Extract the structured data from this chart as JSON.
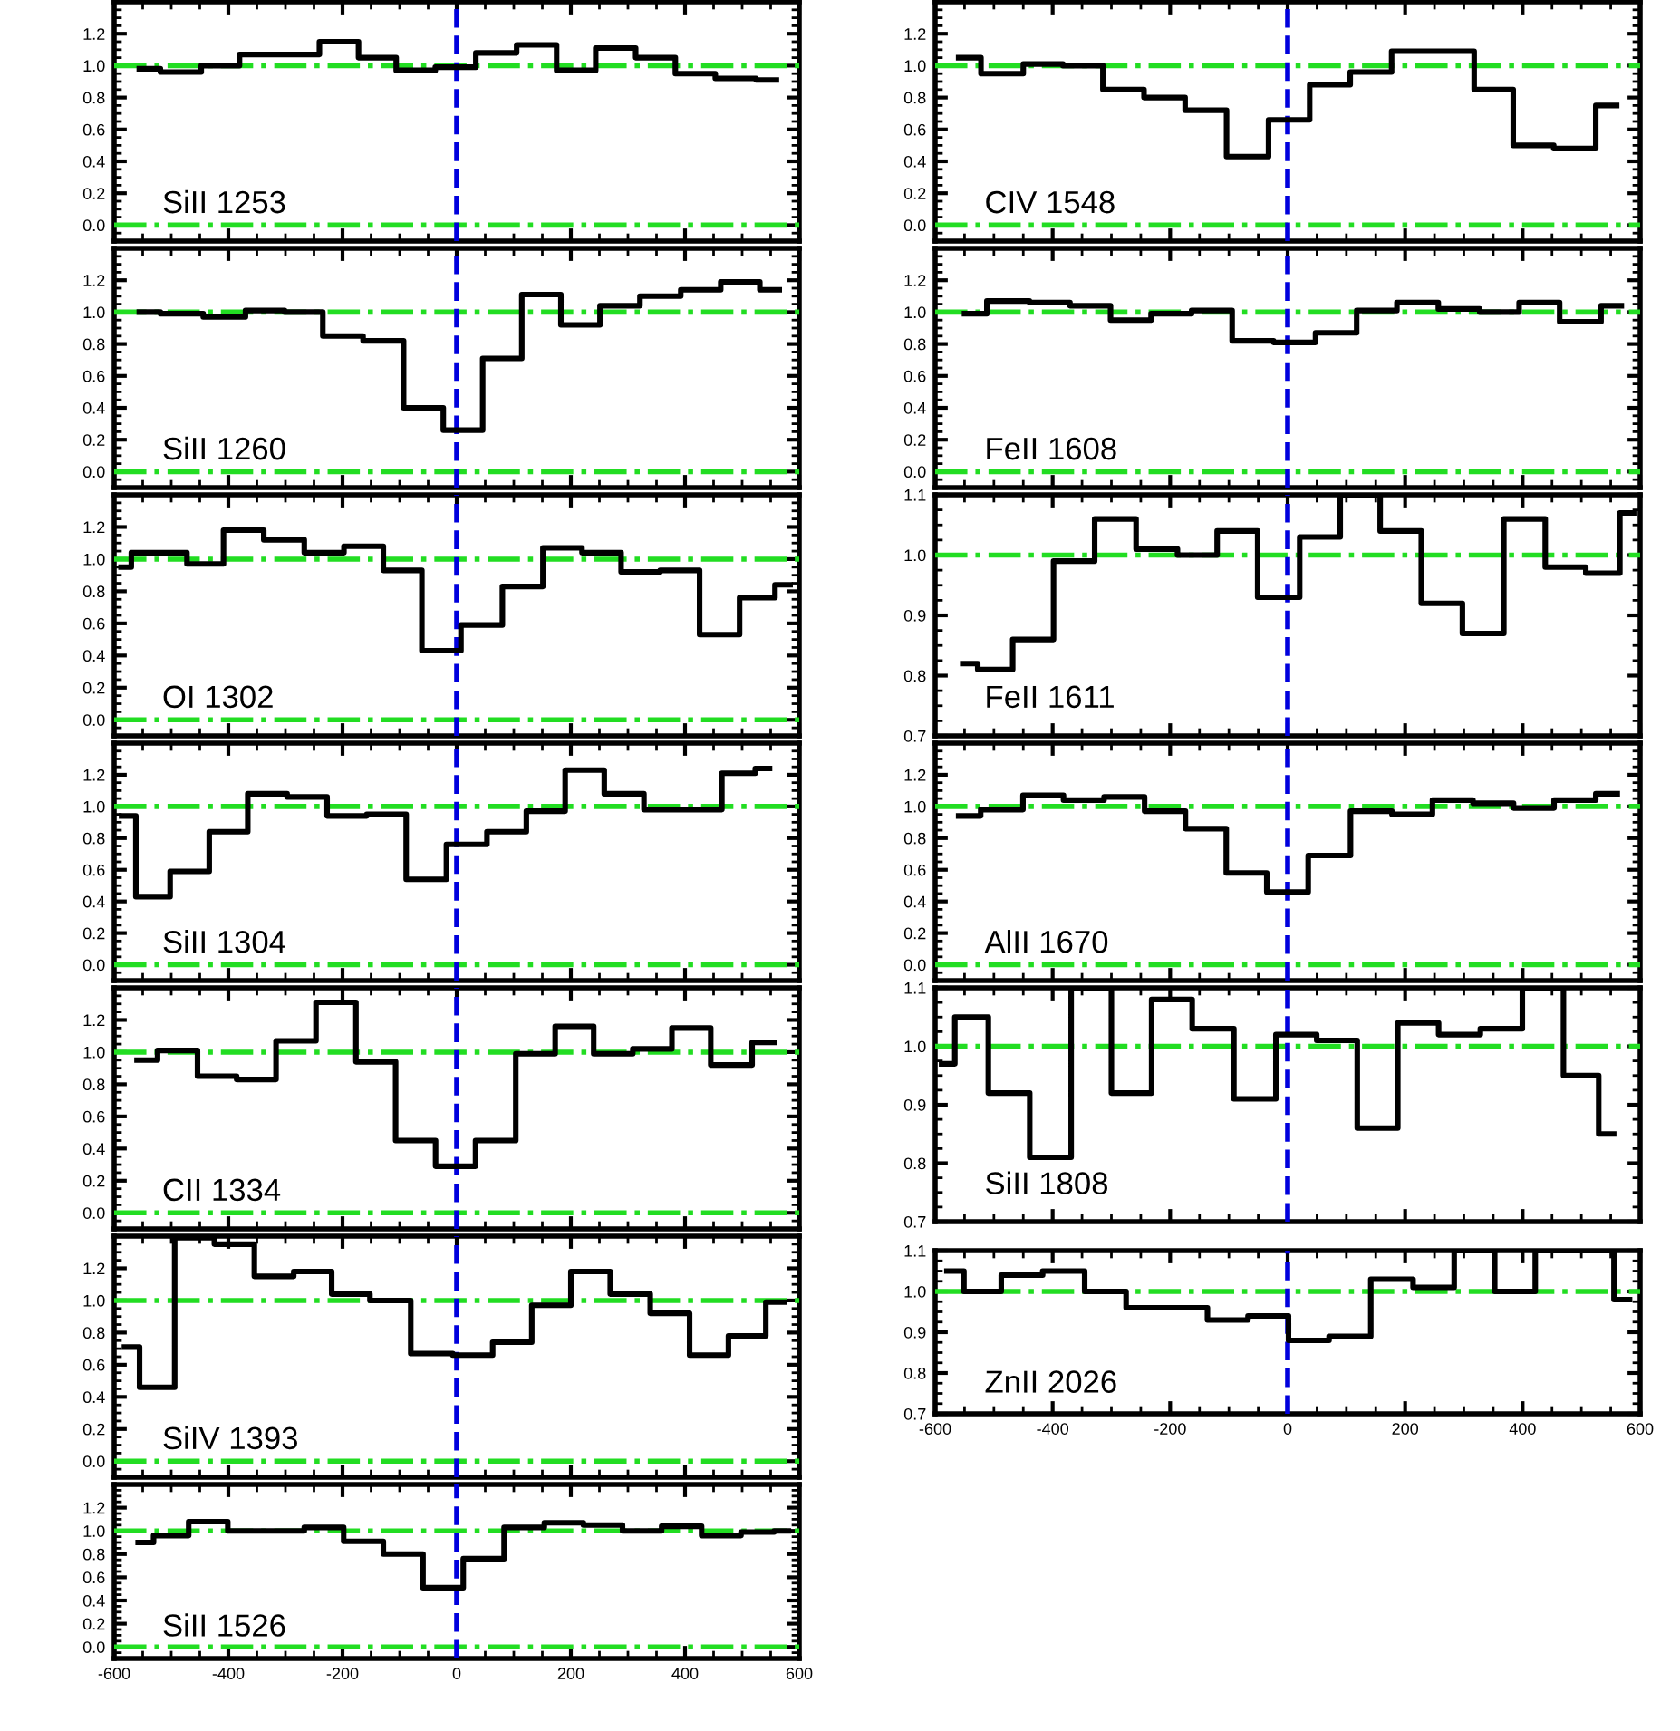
{
  "chart_data": [
    {
      "type": "step",
      "annotations": [
        "SiII 1253"
      ],
      "x": [
        -556,
        -482,
        -413,
        -348,
        -276,
        -205,
        -139,
        -73,
        -2,
        69,
        141,
        209,
        278,
        349,
        417,
        489,
        560
      ],
      "series": [
        {
          "color": "#000000",
          "values": [
            0.98,
            0.96,
            1.0,
            1.07,
            1.07,
            1.15,
            1.05,
            0.97,
            0.99,
            1.08,
            1.13,
            0.97,
            1.11,
            1.05,
            0.95,
            0.92,
            0.91
          ]
        }
      ],
      "xlim": [
        -600,
        600
      ],
      "ylim": [
        -0.1,
        1.4
      ],
      "xticks": [
        -600,
        -400,
        -200,
        0,
        200,
        400,
        600
      ],
      "yticks": [
        {
          "value": 0,
          "label": "0.0"
        },
        {
          "value": 0.2,
          "label": "0.2"
        },
        {
          "value": 0.4,
          "label": "0.4"
        },
        {
          "value": 0.6,
          "label": "0.6"
        },
        {
          "value": 0.8,
          "label": "0.8"
        },
        {
          "value": 1,
          "label": "1.0"
        },
        {
          "value": 1.2,
          "label": "1.2"
        }
      ],
      "tick_labels": "y",
      "ref_lines": [
        {
          "axis": "y",
          "value": 1.0,
          "color": "#22dd22",
          "line_style": "dashdot"
        },
        {
          "axis": "y",
          "value": 0.0,
          "color": "#22dd22",
          "line_style": "dashdot"
        },
        {
          "axis": "x",
          "value": 0,
          "color": "#0000dd",
          "line_style": "dashed"
        }
      ]
    },
    {
      "type": "step",
      "annotations": [
        "CIV 1548"
      ],
      "x": [
        -560,
        -484,
        -416,
        -349,
        -280,
        -209,
        -140,
        -68,
        3,
        72,
        141,
        213,
        284,
        351,
        417,
        489,
        560
      ],
      "series": [
        {
          "color": "#000000",
          "values": [
            1.05,
            0.95,
            1.01,
            1.0,
            0.85,
            0.8,
            0.72,
            0.43,
            0.66,
            0.88,
            0.96,
            1.09,
            1.09,
            0.85,
            0.5,
            0.48,
            0.75
          ]
        }
      ],
      "xlim": [
        -600,
        600
      ],
      "ylim": [
        -0.1,
        1.4
      ],
      "xticks": [
        -600,
        -400,
        -200,
        0,
        200,
        400,
        600
      ],
      "yticks": [
        {
          "value": 0,
          "label": "0.0"
        },
        {
          "value": 0.2,
          "label": "0.2"
        },
        {
          "value": 0.4,
          "label": "0.4"
        },
        {
          "value": 0.6,
          "label": "0.6"
        },
        {
          "value": 0.8,
          "label": "0.8"
        },
        {
          "value": 1,
          "label": "1.0"
        },
        {
          "value": 1.2,
          "label": "1.2"
        }
      ],
      "tick_labels": "y",
      "ref_lines": [
        {
          "axis": "y",
          "value": 1.0,
          "color": "#22dd22",
          "line_style": "dashdot"
        },
        {
          "axis": "y",
          "value": 0.0,
          "color": "#22dd22",
          "line_style": "dashdot"
        },
        {
          "axis": "x",
          "value": 0,
          "color": "#0000dd",
          "line_style": "dashed"
        }
      ]
    },
    {
      "type": "step",
      "annotations": [
        "SiII 1260"
      ],
      "x": [
        -556,
        -482,
        -406,
        -334,
        -269,
        -200,
        -128,
        -58,
        11,
        80,
        148,
        217,
        285,
        357,
        428,
        497,
        565
      ],
      "series": [
        {
          "color": "#000000",
          "values": [
            1.0,
            0.99,
            0.97,
            1.01,
            1.0,
            0.85,
            0.82,
            0.4,
            0.26,
            0.71,
            1.11,
            0.92,
            1.04,
            1.1,
            1.14,
            1.19,
            1.14
          ]
        }
      ],
      "xlim": [
        -600,
        600
      ],
      "ylim": [
        -0.1,
        1.4
      ],
      "xticks": [
        -600,
        -400,
        -200,
        0,
        200,
        400,
        600
      ],
      "yticks": [
        {
          "value": 0,
          "label": "0.0"
        },
        {
          "value": 0.2,
          "label": "0.2"
        },
        {
          "value": 0.4,
          "label": "0.4"
        },
        {
          "value": 0.6,
          "label": "0.6"
        },
        {
          "value": 0.8,
          "label": "0.8"
        },
        {
          "value": 1,
          "label": "1.0"
        },
        {
          "value": 1.2,
          "label": "1.2"
        }
      ],
      "tick_labels": "y",
      "ref_lines": [
        {
          "axis": "y",
          "value": 1.0,
          "color": "#22dd22",
          "line_style": "dashdot"
        },
        {
          "axis": "y",
          "value": 0.0,
          "color": "#22dd22",
          "line_style": "dashdot"
        },
        {
          "axis": "x",
          "value": 0,
          "color": "#0000dd",
          "line_style": "dashed"
        }
      ]
    },
    {
      "type": "step",
      "annotations": [
        "FeII 1608"
      ],
      "x": [
        -550,
        -474,
        -405,
        -336,
        -267,
        -198,
        -129,
        -60,
        12,
        83,
        152,
        220,
        293,
        361,
        427,
        499,
        568
      ],
      "series": [
        {
          "color": "#000000",
          "values": [
            0.99,
            1.07,
            1.06,
            1.04,
            0.95,
            0.99,
            1.01,
            0.82,
            0.81,
            0.87,
            1.01,
            1.06,
            1.02,
            1.0,
            1.06,
            0.94,
            1.04
          ]
        }
      ],
      "xlim": [
        -600,
        600
      ],
      "ylim": [
        -0.1,
        1.4
      ],
      "xticks": [
        -600,
        -400,
        -200,
        0,
        200,
        400,
        600
      ],
      "yticks": [
        {
          "value": 0,
          "label": "0.0"
        },
        {
          "value": 0.2,
          "label": "0.2"
        },
        {
          "value": 0.4,
          "label": "0.4"
        },
        {
          "value": 0.6,
          "label": "0.6"
        },
        {
          "value": 0.8,
          "label": "0.8"
        },
        {
          "value": 1,
          "label": "1.0"
        },
        {
          "value": 1.2,
          "label": "1.2"
        }
      ],
      "tick_labels": "y",
      "ref_lines": [
        {
          "axis": "y",
          "value": 1.0,
          "color": "#22dd22",
          "line_style": "dashdot"
        },
        {
          "axis": "y",
          "value": 0.0,
          "color": "#22dd22",
          "line_style": "dashdot"
        },
        {
          "axis": "x",
          "value": 0,
          "color": "#0000dd",
          "line_style": "dashed"
        }
      ]
    },
    {
      "type": "step",
      "annotations": [
        "OI 1302"
      ],
      "x": [
        -588,
        -552,
        -502,
        -443,
        -374,
        -302,
        -232,
        -163,
        -94,
        -28,
        43,
        117,
        185,
        254,
        322,
        391,
        460,
        531,
        584
      ],
      "series": [
        {
          "color": "#000000",
          "values": [
            0.95,
            1.04,
            1.04,
            0.97,
            1.18,
            1.12,
            1.04,
            1.08,
            0.93,
            0.43,
            0.59,
            0.83,
            1.07,
            1.04,
            0.92,
            0.93,
            0.53,
            0.76,
            0.84
          ]
        }
      ],
      "xlim": [
        -600,
        600
      ],
      "ylim": [
        -0.1,
        1.4
      ],
      "xticks": [
        -600,
        -400,
        -200,
        0,
        200,
        400,
        600
      ],
      "yticks": [
        {
          "value": 0,
          "label": "0.0"
        },
        {
          "value": 0.2,
          "label": "0.2"
        },
        {
          "value": 0.4,
          "label": "0.4"
        },
        {
          "value": 0.6,
          "label": "0.6"
        },
        {
          "value": 0.8,
          "label": "0.8"
        },
        {
          "value": 1,
          "label": "1.0"
        },
        {
          "value": 1.2,
          "label": "1.2"
        }
      ],
      "tick_labels": "y",
      "ref_lines": [
        {
          "axis": "y",
          "value": 1.0,
          "color": "#22dd22",
          "line_style": "dashdot"
        },
        {
          "axis": "y",
          "value": 0.0,
          "color": "#22dd22",
          "line_style": "dashdot"
        },
        {
          "axis": "x",
          "value": 0,
          "color": "#0000dd",
          "line_style": "dashed"
        }
      ]
    },
    {
      "type": "step",
      "annotations": [
        "FeII 1611"
      ],
      "x": [
        -553,
        -502,
        -434,
        -363,
        -294,
        -222,
        -153,
        -87,
        -15,
        56,
        123,
        192,
        263,
        332,
        404,
        473,
        542,
        589
      ],
      "series": [
        {
          "color": "#000000",
          "values": [
            0.82,
            0.81,
            0.86,
            0.99,
            1.06,
            1.01,
            1.0,
            1.04,
            0.93,
            1.03,
            1.1,
            1.04,
            0.92,
            0.87,
            1.06,
            0.98,
            0.97,
            1.07
          ]
        }
      ],
      "xlim": [
        -600,
        600
      ],
      "ylim": [
        0.7,
        1.1
      ],
      "xticks": [
        -600,
        -400,
        -200,
        0,
        200,
        400,
        600
      ],
      "yticks": [
        {
          "value": 0.7,
          "label": "0.7"
        },
        {
          "value": 0.8,
          "label": "0.8"
        },
        {
          "value": 0.9,
          "label": "0.9"
        },
        {
          "value": 1,
          "label": "1.0"
        },
        {
          "value": 1.1,
          "label": "1.1"
        }
      ],
      "tick_labels": "y",
      "ref_lines": [
        {
          "axis": "y",
          "value": 1.0,
          "color": "#22dd22",
          "line_style": "dashdot"
        },
        {
          "axis": "x",
          "value": 0,
          "color": "#0000dd",
          "line_style": "dashed"
        }
      ]
    },
    {
      "type": "step",
      "annotations": [
        "SiII 1304"
      ],
      "x": [
        -587,
        -537,
        -467,
        -400,
        -332,
        -262,
        -192,
        -123,
        -54,
        18,
        88,
        156,
        224,
        293,
        363,
        431,
        498,
        548
      ],
      "series": [
        {
          "color": "#000000",
          "values": [
            0.94,
            0.43,
            0.59,
            0.84,
            1.08,
            1.06,
            0.94,
            0.95,
            0.54,
            0.76,
            0.84,
            0.97,
            1.23,
            1.08,
            0.98,
            0.98,
            1.21,
            1.24
          ]
        }
      ],
      "xlim": [
        -600,
        600
      ],
      "ylim": [
        -0.1,
        1.4
      ],
      "xticks": [
        -600,
        -400,
        -200,
        0,
        200,
        400,
        600
      ],
      "yticks": [
        {
          "value": 0,
          "label": "0.0"
        },
        {
          "value": 0.2,
          "label": "0.2"
        },
        {
          "value": 0.4,
          "label": "0.4"
        },
        {
          "value": 0.6,
          "label": "0.6"
        },
        {
          "value": 0.8,
          "label": "0.8"
        },
        {
          "value": 1,
          "label": "1.0"
        },
        {
          "value": 1.2,
          "label": "1.2"
        }
      ],
      "tick_labels": "y",
      "ref_lines": [
        {
          "axis": "y",
          "value": 1.0,
          "color": "#22dd22",
          "line_style": "dashdot"
        },
        {
          "axis": "y",
          "value": 0.0,
          "color": "#22dd22",
          "line_style": "dashdot"
        },
        {
          "axis": "x",
          "value": 0,
          "color": "#0000dd",
          "line_style": "dashed"
        }
      ]
    },
    {
      "type": "step",
      "annotations": [
        "AlII 1670"
      ],
      "x": [
        -560,
        -485,
        -416,
        -347,
        -278,
        -209,
        -139,
        -70,
        -1,
        71,
        143,
        212,
        281,
        350,
        419,
        488,
        561
      ],
      "series": [
        {
          "color": "#000000",
          "values": [
            0.94,
            0.98,
            1.07,
            1.04,
            1.06,
            0.97,
            0.86,
            0.58,
            0.46,
            0.69,
            0.97,
            0.95,
            1.04,
            1.02,
            0.99,
            1.04,
            1.08
          ]
        }
      ],
      "xlim": [
        -600,
        600
      ],
      "ylim": [
        -0.1,
        1.4
      ],
      "xticks": [
        -600,
        -400,
        -200,
        0,
        200,
        400,
        600
      ],
      "yticks": [
        {
          "value": 0,
          "label": "0.0"
        },
        {
          "value": 0.2,
          "label": "0.2"
        },
        {
          "value": 0.4,
          "label": "0.4"
        },
        {
          "value": 0.6,
          "label": "0.6"
        },
        {
          "value": 0.8,
          "label": "0.8"
        },
        {
          "value": 1,
          "label": "1.0"
        },
        {
          "value": 1.2,
          "label": "1.2"
        }
      ],
      "tick_labels": "y",
      "ref_lines": [
        {
          "axis": "y",
          "value": 1.0,
          "color": "#22dd22",
          "line_style": "dashdot"
        },
        {
          "axis": "y",
          "value": 0.0,
          "color": "#22dd22",
          "line_style": "dashdot"
        },
        {
          "axis": "x",
          "value": 0,
          "color": "#0000dd",
          "line_style": "dashed"
        }
      ]
    },
    {
      "type": "step",
      "annotations": [
        "CII 1334"
      ],
      "x": [
        -560,
        -488,
        -420,
        -351,
        -282,
        -211,
        -142,
        -72,
        -2,
        68,
        139,
        206,
        274,
        343,
        411,
        479,
        556
      ],
      "series": [
        {
          "color": "#000000",
          "values": [
            0.95,
            1.01,
            0.85,
            0.83,
            1.07,
            1.31,
            0.94,
            0.45,
            0.29,
            0.45,
            0.99,
            1.16,
            0.99,
            1.02,
            1.15,
            0.92,
            1.06
          ]
        }
      ],
      "xlim": [
        -600,
        600
      ],
      "ylim": [
        -0.1,
        1.4
      ],
      "xticks": [
        -600,
        -400,
        -200,
        0,
        200,
        400,
        600
      ],
      "yticks": [
        {
          "value": 0,
          "label": "0.0"
        },
        {
          "value": 0.2,
          "label": "0.2"
        },
        {
          "value": 0.4,
          "label": "0.4"
        },
        {
          "value": 0.6,
          "label": "0.6"
        },
        {
          "value": 0.8,
          "label": "0.8"
        },
        {
          "value": 1,
          "label": "1.0"
        },
        {
          "value": 1.2,
          "label": "1.2"
        }
      ],
      "tick_labels": "y",
      "ref_lines": [
        {
          "axis": "y",
          "value": 1.0,
          "color": "#22dd22",
          "line_style": "dashdot"
        },
        {
          "axis": "y",
          "value": 0.0,
          "color": "#22dd22",
          "line_style": "dashdot"
        },
        {
          "axis": "x",
          "value": 0,
          "color": "#0000dd",
          "line_style": "dashed"
        }
      ]
    },
    {
      "type": "step",
      "annotations": [
        "SiII 1808"
      ],
      "x": [
        -589,
        -544,
        -475,
        -403,
        -334,
        -266,
        -197,
        -128,
        -55,
        15,
        84,
        153,
        222,
        292,
        364,
        435,
        504,
        555
      ],
      "series": [
        {
          "color": "#000000",
          "values": [
            0.97,
            1.05,
            0.92,
            0.81,
            1.1,
            0.92,
            1.08,
            1.03,
            0.91,
            1.02,
            1.01,
            0.86,
            1.04,
            1.02,
            1.03,
            1.1,
            0.95,
            0.85
          ]
        }
      ],
      "xlim": [
        -600,
        600
      ],
      "ylim": [
        0.7,
        1.1
      ],
      "xticks": [
        -600,
        -400,
        -200,
        0,
        200,
        400,
        600
      ],
      "yticks": [
        {
          "value": 0.7,
          "label": "0.7"
        },
        {
          "value": 0.8,
          "label": "0.8"
        },
        {
          "value": 0.9,
          "label": "0.9"
        },
        {
          "value": 1,
          "label": "1.0"
        },
        {
          "value": 1.1,
          "label": "1.1"
        }
      ],
      "tick_labels": "y",
      "ref_lines": [
        {
          "axis": "y",
          "value": 1.0,
          "color": "#22dd22",
          "line_style": "dashdot"
        },
        {
          "axis": "x",
          "value": 0,
          "color": "#0000dd",
          "line_style": "dashed"
        }
      ]
    },
    {
      "type": "step",
      "annotations": [
        "SiIV 1393"
      ],
      "x": [
        -582,
        -529,
        -459,
        -390,
        -319,
        -252,
        -186,
        -118,
        -43,
        29,
        97,
        166,
        234,
        304,
        374,
        442,
        510,
        573
      ],
      "series": [
        {
          "color": "#000000",
          "values": [
            0.71,
            0.46,
            1.39,
            1.35,
            1.15,
            1.18,
            1.04,
            1.0,
            0.67,
            0.66,
            0.74,
            0.97,
            1.18,
            1.04,
            0.92,
            0.66,
            0.78,
            0.99
          ]
        }
      ],
      "xlim": [
        -600,
        600
      ],
      "ylim": [
        -0.1,
        1.4
      ],
      "xticks": [
        -600,
        -400,
        -200,
        0,
        200,
        400,
        600
      ],
      "yticks": [
        {
          "value": 0,
          "label": "0.0"
        },
        {
          "value": 0.2,
          "label": "0.2"
        },
        {
          "value": 0.4,
          "label": "0.4"
        },
        {
          "value": 0.6,
          "label": "0.6"
        },
        {
          "value": 0.8,
          "label": "0.8"
        },
        {
          "value": 1,
          "label": "1.0"
        },
        {
          "value": 1.2,
          "label": "1.2"
        }
      ],
      "tick_labels": "y",
      "ref_lines": [
        {
          "axis": "y",
          "value": 1.0,
          "color": "#22dd22",
          "line_style": "dashdot"
        },
        {
          "axis": "y",
          "value": 0.0,
          "color": "#22dd22",
          "line_style": "dashdot"
        },
        {
          "axis": "x",
          "value": 0,
          "color": "#0000dd",
          "line_style": "dashed"
        }
      ]
    },
    {
      "type": "step",
      "annotations": [
        "ZnII 2026"
      ],
      "x": [
        -580,
        -522,
        -453,
        -381,
        -310,
        -240,
        -171,
        -102,
        -33,
        36,
        105,
        178,
        249,
        318,
        387,
        456,
        529,
        582
      ],
      "series": [
        {
          "color": "#000000",
          "values": [
            1.05,
            1.0,
            1.04,
            1.05,
            1.0,
            0.96,
            0.96,
            0.93,
            0.94,
            0.88,
            0.89,
            1.03,
            1.01,
            1.1,
            1.0,
            1.1,
            1.1,
            0.98
          ]
        }
      ],
      "xlim": [
        -600,
        600
      ],
      "ylim": [
        0.7,
        1.1
      ],
      "xticks": [
        -600,
        -400,
        -200,
        0,
        200,
        400,
        600
      ],
      "yticks": [
        {
          "value": 0.7,
          "label": "0.7"
        },
        {
          "value": 0.8,
          "label": "0.8"
        },
        {
          "value": 0.9,
          "label": "0.9"
        },
        {
          "value": 1,
          "label": "1.0"
        },
        {
          "value": 1.1,
          "label": "1.1"
        }
      ],
      "ref_lines": [
        {
          "axis": "y",
          "value": 1.0,
          "color": "#22dd22",
          "line_style": "dashdot"
        },
        {
          "axis": "x",
          "value": 0,
          "color": "#0000dd",
          "line_style": "dashed"
        }
      ]
    },
    {
      "type": "step",
      "annotations": [
        "SiII 1526"
      ],
      "x": [
        -558,
        -504,
        -435,
        -367,
        -301,
        -233,
        -163,
        -94,
        -24,
        47,
        119,
        188,
        256,
        325,
        393,
        465,
        531,
        581
      ],
      "series": [
        {
          "color": "#000000",
          "values": [
            0.9,
            0.96,
            1.08,
            1.0,
            1.0,
            1.03,
            0.91,
            0.8,
            0.51,
            0.76,
            1.03,
            1.07,
            1.05,
            1.0,
            1.04,
            0.96,
            0.99,
            1.0
          ]
        }
      ],
      "xlim": [
        -600,
        600
      ],
      "ylim": [
        -0.1,
        1.4
      ],
      "xticks": [
        -600,
        -400,
        -200,
        0,
        200,
        400,
        600
      ],
      "yticks": [
        {
          "value": 0,
          "label": "0.0"
        },
        {
          "value": 0.2,
          "label": "0.2"
        },
        {
          "value": 0.4,
          "label": "0.4"
        },
        {
          "value": 0.6,
          "label": "0.6"
        },
        {
          "value": 0.8,
          "label": "0.8"
        },
        {
          "value": 1,
          "label": "1.0"
        },
        {
          "value": 1.2,
          "label": "1.2"
        }
      ],
      "ref_lines": [
        {
          "axis": "y",
          "value": 1.0,
          "color": "#22dd22",
          "line_style": "dashdot"
        },
        {
          "axis": "y",
          "value": 0.0,
          "color": "#22dd22",
          "line_style": "dashdot"
        },
        {
          "axis": "x",
          "value": 0,
          "color": "#0000dd",
          "line_style": "dashed"
        }
      ]
    }
  ]
}
